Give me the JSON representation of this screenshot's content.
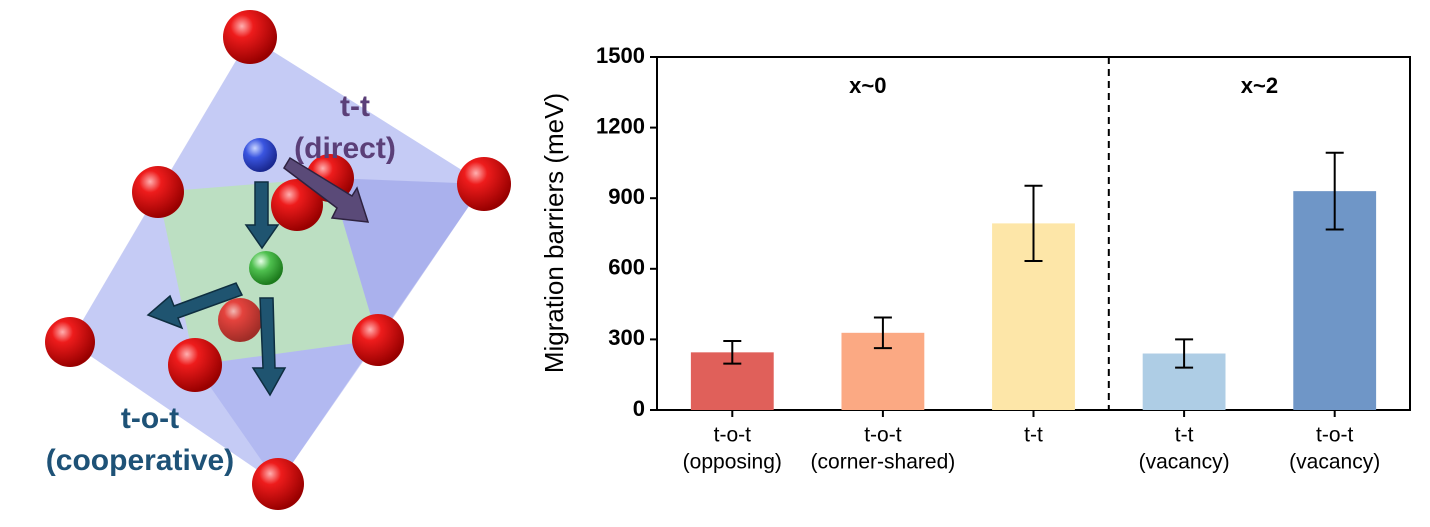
{
  "diagram": {
    "labels": [
      {
        "lines": [
          "t-t",
          "(direct)"
        ]
      },
      {
        "lines": [
          "t-o-t",
          "(cooperative)"
        ]
      }
    ]
  },
  "chart_data": {
    "type": "bar",
    "ylabel": "Migration barriers (meV)",
    "categories": [
      [
        "t-o-t",
        "(opposing)"
      ],
      [
        "t-o-t",
        "(corner-shared)"
      ],
      [
        "t-t"
      ],
      [
        "t-t",
        "(vacancy)"
      ],
      [
        "t-o-t",
        "(vacancy)"
      ]
    ],
    "values": [
      245,
      328,
      793,
      240,
      930
    ],
    "errors": [
      48,
      65,
      160,
      60,
      163
    ],
    "colors": [
      "#e0605a",
      "#fba983",
      "#fde6a8",
      "#aecde5",
      "#6f96c7"
    ],
    "annotations": [
      "x~0",
      "x~2"
    ],
    "ylim": [
      0,
      1500
    ],
    "yticks": [
      0,
      300,
      600,
      900,
      1200,
      1500
    ],
    "grid": false
  }
}
